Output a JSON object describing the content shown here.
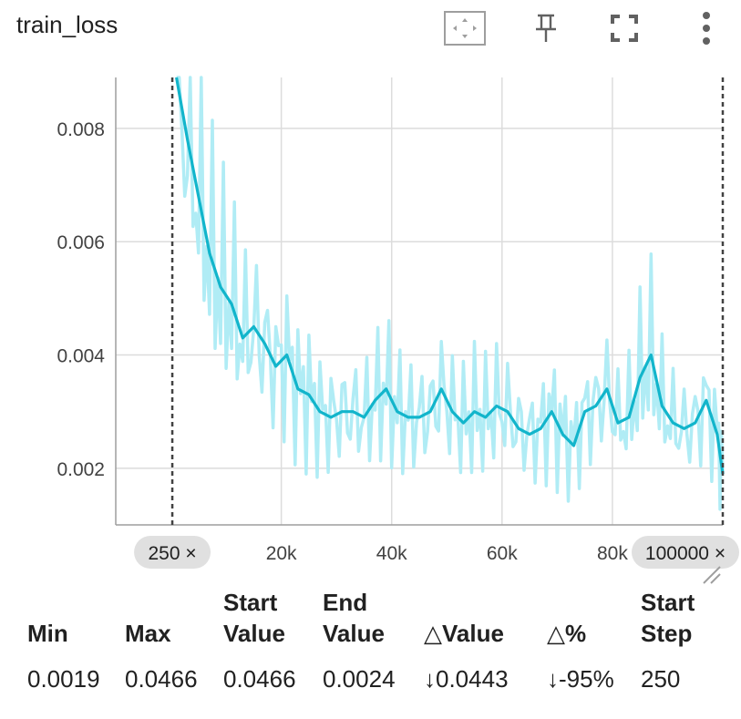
{
  "card": {
    "title": "train_loss",
    "toolbar": {
      "fit_icon": "fit-domain-icon",
      "pin_icon": "pin-icon",
      "fullscreen_icon": "fullscreen-icon",
      "more_icon": "more-vert-icon"
    }
  },
  "chart_data": {
    "type": "line",
    "title": "train_loss",
    "xlabel": "",
    "ylabel": "",
    "xlim": [
      -10000,
      100000
    ],
    "ylim": [
      0.001,
      0.0089
    ],
    "x_ticks": [
      20000,
      40000,
      60000,
      80000
    ],
    "x_tick_labels": [
      "20k",
      "40k",
      "60k",
      "80k"
    ],
    "y_ticks": [
      0.002,
      0.004,
      0.006,
      0.008
    ],
    "y_tick_labels": [
      "0.002",
      "0.004",
      "0.006",
      "0.008"
    ],
    "grid": true,
    "range_markers": [
      {
        "step": 250,
        "label": "250 ×"
      },
      {
        "step": 100000,
        "label": "100000 ×"
      }
    ],
    "colors": {
      "smoothed": "#12b5cb",
      "raw": "#b0ecf5"
    },
    "series": [
      {
        "x": [
          1000,
          3000,
          5000,
          7000,
          9000,
          11000,
          13000,
          15000,
          17000,
          19000,
          21000,
          23000,
          25000,
          27000,
          29000,
          31000,
          33000,
          35000,
          37000,
          39000,
          41000,
          43000,
          45000,
          47000,
          49000,
          51000,
          53000,
          55000,
          57000,
          59000,
          61000,
          63000,
          65000,
          67000,
          69000,
          71000,
          73000,
          75000,
          77000,
          79000,
          81000,
          83000,
          85000,
          87000,
          89000,
          91000,
          93000,
          95000,
          97000,
          99000,
          100000
        ],
        "y": [
          0.0089,
          0.0078,
          0.0068,
          0.0058,
          0.0052,
          0.0049,
          0.0043,
          0.0045,
          0.0042,
          0.0038,
          0.004,
          0.0034,
          0.0033,
          0.003,
          0.0029,
          0.003,
          0.003,
          0.0029,
          0.0032,
          0.0034,
          0.003,
          0.0029,
          0.0029,
          0.003,
          0.0034,
          0.003,
          0.0028,
          0.003,
          0.0029,
          0.0031,
          0.003,
          0.0027,
          0.0026,
          0.0027,
          0.003,
          0.0026,
          0.0024,
          0.003,
          0.0031,
          0.0034,
          0.0028,
          0.0029,
          0.0036,
          0.004,
          0.0031,
          0.0028,
          0.0027,
          0.0028,
          0.0032,
          0.0026,
          0.0019
        ]
      }
    ]
  },
  "stats": {
    "headers": [
      "Min",
      "Max",
      "Start\nValue",
      "End\nValue",
      "△Value",
      "△%",
      "Start\nStep"
    ],
    "values": [
      "0.0019",
      "0.0466",
      "0.0466",
      "0.0024",
      "↓0.0443",
      "↓-95%",
      "250"
    ]
  }
}
